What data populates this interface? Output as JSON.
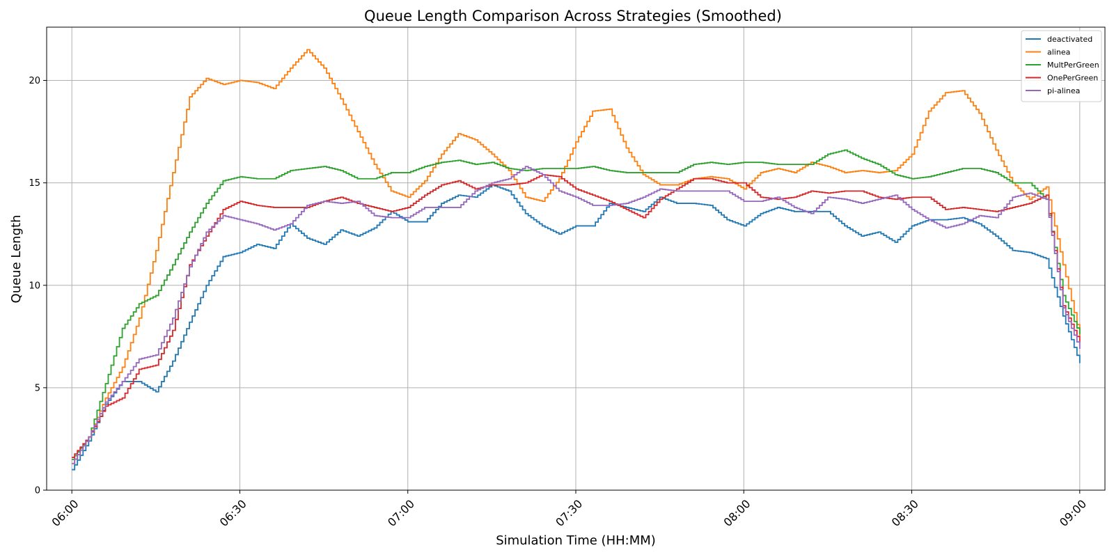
{
  "chart_data": {
    "type": "line",
    "step": true,
    "title": "Queue Length Comparison Across Strategies (Smoothed)",
    "xlabel": "Simulation Time (HH:MM)",
    "ylabel": "Queue Length",
    "x_range_minutes": [
      -4.5,
      184.5
    ],
    "ylim": [
      0,
      22.6
    ],
    "grid": true,
    "legend_position": "top-right",
    "xticks": [
      {
        "value": 0,
        "label": "06:00"
      },
      {
        "value": 30,
        "label": "06:30"
      },
      {
        "value": 60,
        "label": "07:00"
      },
      {
        "value": 90,
        "label": "07:30"
      },
      {
        "value": 120,
        "label": "08:00"
      },
      {
        "value": 150,
        "label": "08:30"
      },
      {
        "value": 180,
        "label": "09:00"
      }
    ],
    "yticks": [
      {
        "value": 0,
        "label": "0"
      },
      {
        "value": 5,
        "label": "5"
      },
      {
        "value": 10,
        "label": "10"
      },
      {
        "value": 15,
        "label": "15"
      },
      {
        "value": 20,
        "label": "20"
      }
    ],
    "x": [
      0,
      3,
      6,
      9,
      12,
      15,
      18,
      21,
      24,
      27,
      30,
      33,
      36,
      39,
      42,
      45,
      48,
      51,
      54,
      57,
      60,
      63,
      66,
      69,
      72,
      75,
      78,
      81,
      84,
      87,
      90,
      93,
      96,
      99,
      102,
      105,
      108,
      111,
      114,
      117,
      120,
      123,
      126,
      129,
      132,
      135,
      138,
      141,
      144,
      147,
      150,
      153,
      156,
      159,
      162,
      165,
      168,
      171,
      174,
      177,
      180
    ],
    "series": [
      {
        "name": "deactivated",
        "color": "#1f77b4",
        "values": [
          1.0,
          2.4,
          4.2,
          5.3,
          5.3,
          4.8,
          6.3,
          8.2,
          10.0,
          11.4,
          11.6,
          12.0,
          11.8,
          13.0,
          12.3,
          12.0,
          12.7,
          12.4,
          12.8,
          13.6,
          13.1,
          13.1,
          14.0,
          14.4,
          14.3,
          14.9,
          14.6,
          13.5,
          12.9,
          12.5,
          12.9,
          12.9,
          14.0,
          13.8,
          13.6,
          14.3,
          14.0,
          14.0,
          13.9,
          13.2,
          12.9,
          13.5,
          13.8,
          13.6,
          13.6,
          13.6,
          12.9,
          12.4,
          12.6,
          12.1,
          12.9,
          13.2,
          13.2,
          13.3,
          13.0,
          12.4,
          11.7,
          11.6,
          11.3,
          8.5,
          6.2
        ]
      },
      {
        "name": "alinea",
        "color": "#ff7f0e",
        "values": [
          1.3,
          2.6,
          4.5,
          6.0,
          8.4,
          11.7,
          15.5,
          19.2,
          20.1,
          19.8,
          20.0,
          19.9,
          19.6,
          20.6,
          21.5,
          20.6,
          19.1,
          17.5,
          15.9,
          14.6,
          14.3,
          15.1,
          16.4,
          17.4,
          17.1,
          16.4,
          15.6,
          14.3,
          14.1,
          15.2,
          17.0,
          18.5,
          18.6,
          16.7,
          15.4,
          14.9,
          14.9,
          15.2,
          15.3,
          15.2,
          14.7,
          15.5,
          15.7,
          15.5,
          16.0,
          15.8,
          15.5,
          15.6,
          15.5,
          15.6,
          16.4,
          18.5,
          19.4,
          19.5,
          18.4,
          16.6,
          15.0,
          14.2,
          14.8,
          11.0,
          7.5
        ]
      },
      {
        "name": "MultPerGreen",
        "color": "#2ca02c",
        "values": [
          1.5,
          2.6,
          5.2,
          7.9,
          9.1,
          9.5,
          11.0,
          12.6,
          14.0,
          15.1,
          15.3,
          15.2,
          15.2,
          15.6,
          15.7,
          15.8,
          15.6,
          15.2,
          15.2,
          15.5,
          15.5,
          15.8,
          16.0,
          16.1,
          15.9,
          16.0,
          15.7,
          15.6,
          15.7,
          15.7,
          15.7,
          15.8,
          15.6,
          15.5,
          15.5,
          15.5,
          15.5,
          15.9,
          16.0,
          15.9,
          16.0,
          16.0,
          15.9,
          15.9,
          15.9,
          16.4,
          16.6,
          16.2,
          15.9,
          15.4,
          15.2,
          15.3,
          15.5,
          15.7,
          15.7,
          15.5,
          15.0,
          15.0,
          14.2,
          9.5,
          7.6
        ]
      },
      {
        "name": "OnePerGreen",
        "color": "#d62728",
        "values": [
          1.6,
          2.6,
          4.1,
          4.5,
          5.9,
          6.1,
          7.8,
          11.0,
          12.4,
          13.7,
          14.1,
          13.9,
          13.8,
          13.8,
          13.8,
          14.1,
          14.3,
          14.0,
          13.8,
          13.6,
          13.8,
          14.4,
          14.9,
          15.1,
          14.7,
          14.9,
          14.9,
          15.0,
          15.4,
          15.3,
          14.7,
          14.4,
          14.1,
          13.7,
          13.3,
          14.2,
          14.7,
          15.2,
          15.2,
          15.0,
          15.0,
          14.3,
          14.2,
          14.3,
          14.6,
          14.5,
          14.6,
          14.6,
          14.3,
          14.2,
          14.3,
          14.3,
          13.7,
          13.8,
          13.7,
          13.6,
          13.8,
          14.0,
          14.4,
          9.0,
          7.2
        ]
      },
      {
        "name": "pi-alinea",
        "color": "#9467bd",
        "values": [
          1.3,
          2.6,
          4.3,
          5.3,
          6.4,
          6.6,
          8.4,
          10.9,
          12.6,
          13.4,
          13.2,
          13.0,
          12.7,
          13.0,
          13.9,
          14.1,
          14.0,
          14.1,
          13.4,
          13.3,
          13.3,
          13.8,
          13.8,
          13.8,
          14.6,
          15.0,
          15.2,
          15.8,
          15.4,
          14.6,
          14.3,
          13.9,
          13.9,
          14.0,
          14.3,
          14.7,
          14.6,
          14.6,
          14.6,
          14.6,
          14.1,
          14.1,
          14.3,
          13.8,
          13.5,
          14.3,
          14.2,
          14.0,
          14.2,
          14.4,
          13.7,
          13.2,
          12.8,
          13.0,
          13.4,
          13.3,
          14.3,
          14.5,
          14.2,
          8.9,
          6.9
        ]
      }
    ]
  }
}
